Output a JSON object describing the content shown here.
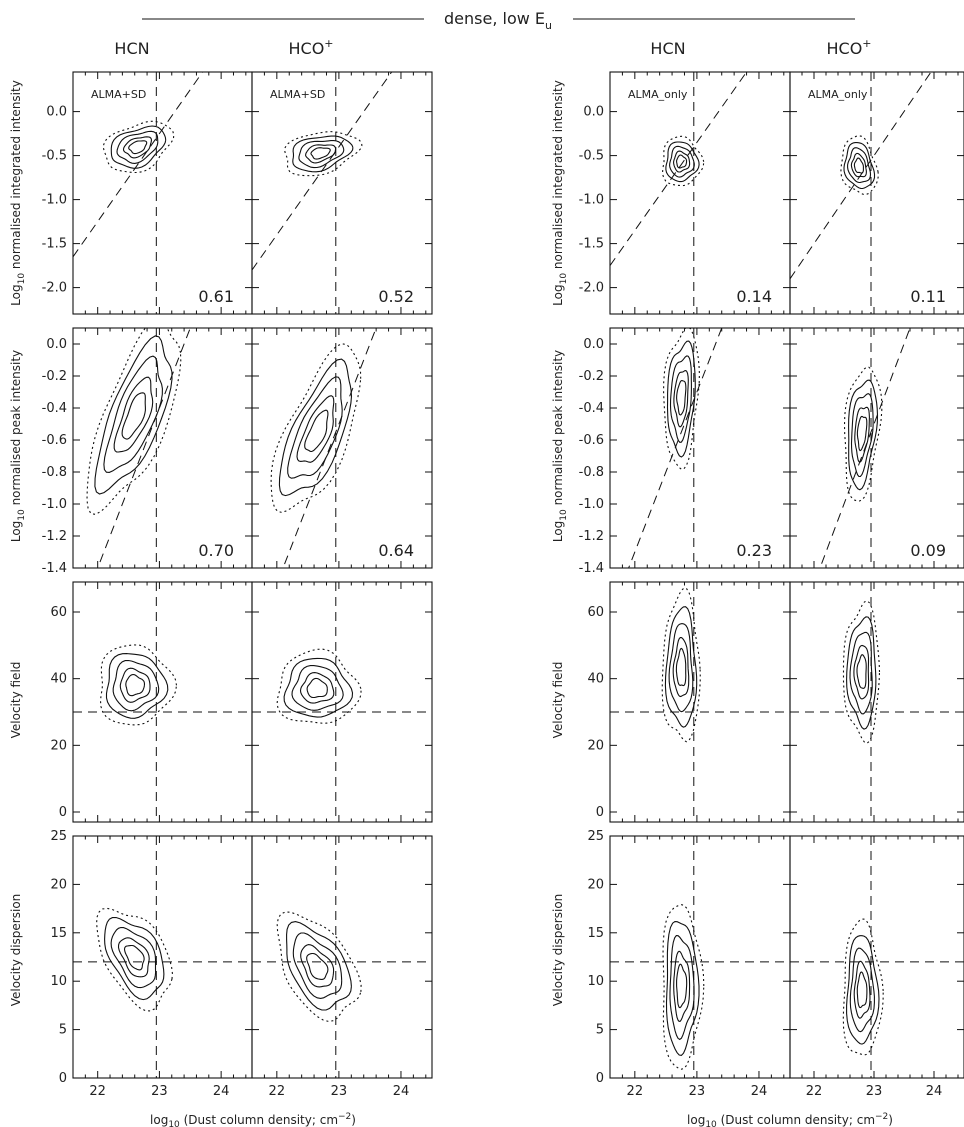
{
  "figure": {
    "header": "dense, low E",
    "header_sub": "u",
    "xaxis_label_main": "log",
    "xaxis_label_sub": "10",
    "xaxis_label_rest": " (Dust column density; cm",
    "xaxis_label_sup": "−2",
    "xaxis_label_end": ")",
    "column_titles": [
      {
        "text": "HCN",
        "sup": ""
      },
      {
        "text": "HCO",
        "sup": "+"
      },
      {
        "text": "HCN",
        "sup": ""
      },
      {
        "text": "HCO",
        "sup": "+"
      }
    ],
    "row_labels": [
      {
        "pre": "Log",
        "sub": "10",
        "post": " normalised integrated intensity"
      },
      {
        "pre": "Log",
        "sub": "10",
        "post": " normalised peak intensity"
      },
      {
        "pre": "Velocity field",
        "sub": "",
        "post": ""
      },
      {
        "pre": "Velocity dispersion",
        "sub": "",
        "post": ""
      }
    ],
    "panel_tags": [
      "ALMA+SD",
      "ALMA+SD",
      "ALMA_only",
      "ALMA_only"
    ]
  },
  "chart_data": {
    "type": "contour",
    "x": {
      "label": "log10 (Dust column density; cm−2)",
      "lim": [
        21.6,
        24.5
      ],
      "ticks": [
        "22",
        "23",
        "24"
      ],
      "reference_x": 22.95
    },
    "rows": [
      {
        "quantity": "Log10 normalised integrated intensity",
        "ylim": [
          -2.3,
          0.45
        ],
        "ticks": [
          "0.0",
          "-0.5",
          "-1.0",
          "-1.5",
          "-2.0"
        ],
        "tick_values": [
          0.0,
          -0.5,
          -1.0,
          -1.5,
          -2.0
        ],
        "fit_slope": 1.0,
        "reference_y": null
      },
      {
        "quantity": "Log10 normalised peak intensity",
        "ylim": [
          -1.4,
          0.1
        ],
        "ticks": [
          "0.0",
          "-0.2",
          "-0.4",
          "-0.6",
          "-0.8",
          "-1.0",
          "-1.2",
          "-1.4"
        ],
        "tick_values": [
          0.0,
          -0.2,
          -0.4,
          -0.6,
          -0.8,
          -1.0,
          -1.2,
          -1.4
        ],
        "fit_slope": 1.0,
        "reference_y": null
      },
      {
        "quantity": "Velocity field",
        "ylim": [
          -3,
          69
        ],
        "ticks": [
          "0",
          "20",
          "40",
          "60"
        ],
        "tick_values": [
          0,
          20,
          40,
          60
        ],
        "fit_slope": null,
        "reference_y": 30
      },
      {
        "quantity": "Velocity dispersion",
        "ylim": [
          0,
          25
        ],
        "ticks": [
          "0",
          "5",
          "10",
          "15",
          "20",
          "25"
        ],
        "tick_values": [
          0,
          5,
          10,
          15,
          20,
          25
        ],
        "fit_slope": null,
        "reference_y": 12
      }
    ],
    "panels": [
      {
        "row": 0,
        "col": 0,
        "line": "HCN",
        "data": "ALMA+SD",
        "correlation": "0.61",
        "fit_intercept": -0.3,
        "center": [
          22.65,
          -0.4
        ],
        "spread": [
          0.55,
          0.27
        ],
        "tilt": 0.35
      },
      {
        "row": 0,
        "col": 1,
        "line": "HCO+",
        "data": "ALMA+SD",
        "correlation": "0.52",
        "fit_intercept": -0.45,
        "center": [
          22.7,
          -0.47
        ],
        "spread": [
          0.6,
          0.24
        ],
        "tilt": 0.3
      },
      {
        "row": 0,
        "col": 2,
        "line": "HCN",
        "data": "ALMA_only",
        "correlation": "0.14",
        "fit_intercept": -0.4,
        "center": [
          22.75,
          -0.57
        ],
        "spread": [
          0.32,
          0.28
        ],
        "tilt": 0.0
      },
      {
        "row": 0,
        "col": 3,
        "line": "HCO+",
        "data": "ALMA_only",
        "correlation": "0.11",
        "fit_intercept": -0.55,
        "center": [
          22.75,
          -0.62
        ],
        "spread": [
          0.3,
          0.32
        ],
        "tilt": -0.2
      },
      {
        "row": 1,
        "col": 0,
        "line": "HCN",
        "data": "ALMA+SD",
        "correlation": "0.70",
        "fit_intercept": -0.45,
        "center": [
          22.6,
          -0.45
        ],
        "spread": [
          0.75,
          0.42
        ],
        "tilt": 0.95
      },
      {
        "row": 1,
        "col": 1,
        "line": "HCO+",
        "data": "ALMA+SD",
        "correlation": "0.64",
        "fit_intercept": -0.55,
        "center": [
          22.65,
          -0.55
        ],
        "spread": [
          0.72,
          0.38
        ],
        "tilt": 0.9
      },
      {
        "row": 1,
        "col": 2,
        "line": "HCN",
        "data": "ALMA_only",
        "correlation": "0.23",
        "fit_intercept": -0.35,
        "center": [
          22.75,
          -0.33
        ],
        "spread": [
          0.28,
          0.42
        ],
        "tilt": 0.2
      },
      {
        "row": 1,
        "col": 3,
        "line": "HCO+",
        "data": "ALMA_only",
        "correlation": "0.09",
        "fit_intercept": -0.55,
        "center": [
          22.8,
          -0.55
        ],
        "spread": [
          0.3,
          0.4
        ],
        "tilt": 0.3
      },
      {
        "row": 2,
        "col": 0,
        "line": "HCN",
        "data": "ALMA+SD",
        "center": [
          22.6,
          38
        ],
        "spread": [
          0.6,
          12
        ],
        "tilt": 0.0
      },
      {
        "row": 2,
        "col": 1,
        "line": "HCO+",
        "data": "ALMA+SD",
        "center": [
          22.65,
          37
        ],
        "spread": [
          0.65,
          11
        ],
        "tilt": 0.0
      },
      {
        "row": 2,
        "col": 2,
        "line": "HCN",
        "data": "ALMA_only",
        "center": [
          22.75,
          43
        ],
        "spread": [
          0.3,
          22
        ],
        "tilt": 0.0
      },
      {
        "row": 2,
        "col": 3,
        "line": "HCO+",
        "data": "ALMA_only",
        "center": [
          22.8,
          42
        ],
        "spread": [
          0.3,
          20
        ],
        "tilt": 0.0
      },
      {
        "row": 3,
        "col": 0,
        "line": "HCN",
        "data": "ALMA+SD",
        "center": [
          22.6,
          12.5
        ],
        "spread": [
          0.6,
          4.5
        ],
        "tilt": -0.5
      },
      {
        "row": 3,
        "col": 1,
        "line": "HCO+",
        "data": "ALMA+SD",
        "center": [
          22.65,
          11.5
        ],
        "spread": [
          0.65,
          4.8
        ],
        "tilt": -0.5
      },
      {
        "row": 3,
        "col": 2,
        "line": "HCN",
        "data": "ALMA_only",
        "center": [
          22.75,
          9.5
        ],
        "spread": [
          0.32,
          8.5
        ],
        "tilt": 0.0
      },
      {
        "row": 3,
        "col": 3,
        "line": "HCO+",
        "data": "ALMA_only",
        "center": [
          22.8,
          9
        ],
        "spread": [
          0.32,
          7
        ],
        "tilt": 0.0
      }
    ],
    "contour_levels": [
      1.0,
      0.8,
      0.6,
      0.4,
      0.25
    ],
    "outer_level_style": "dotted"
  }
}
